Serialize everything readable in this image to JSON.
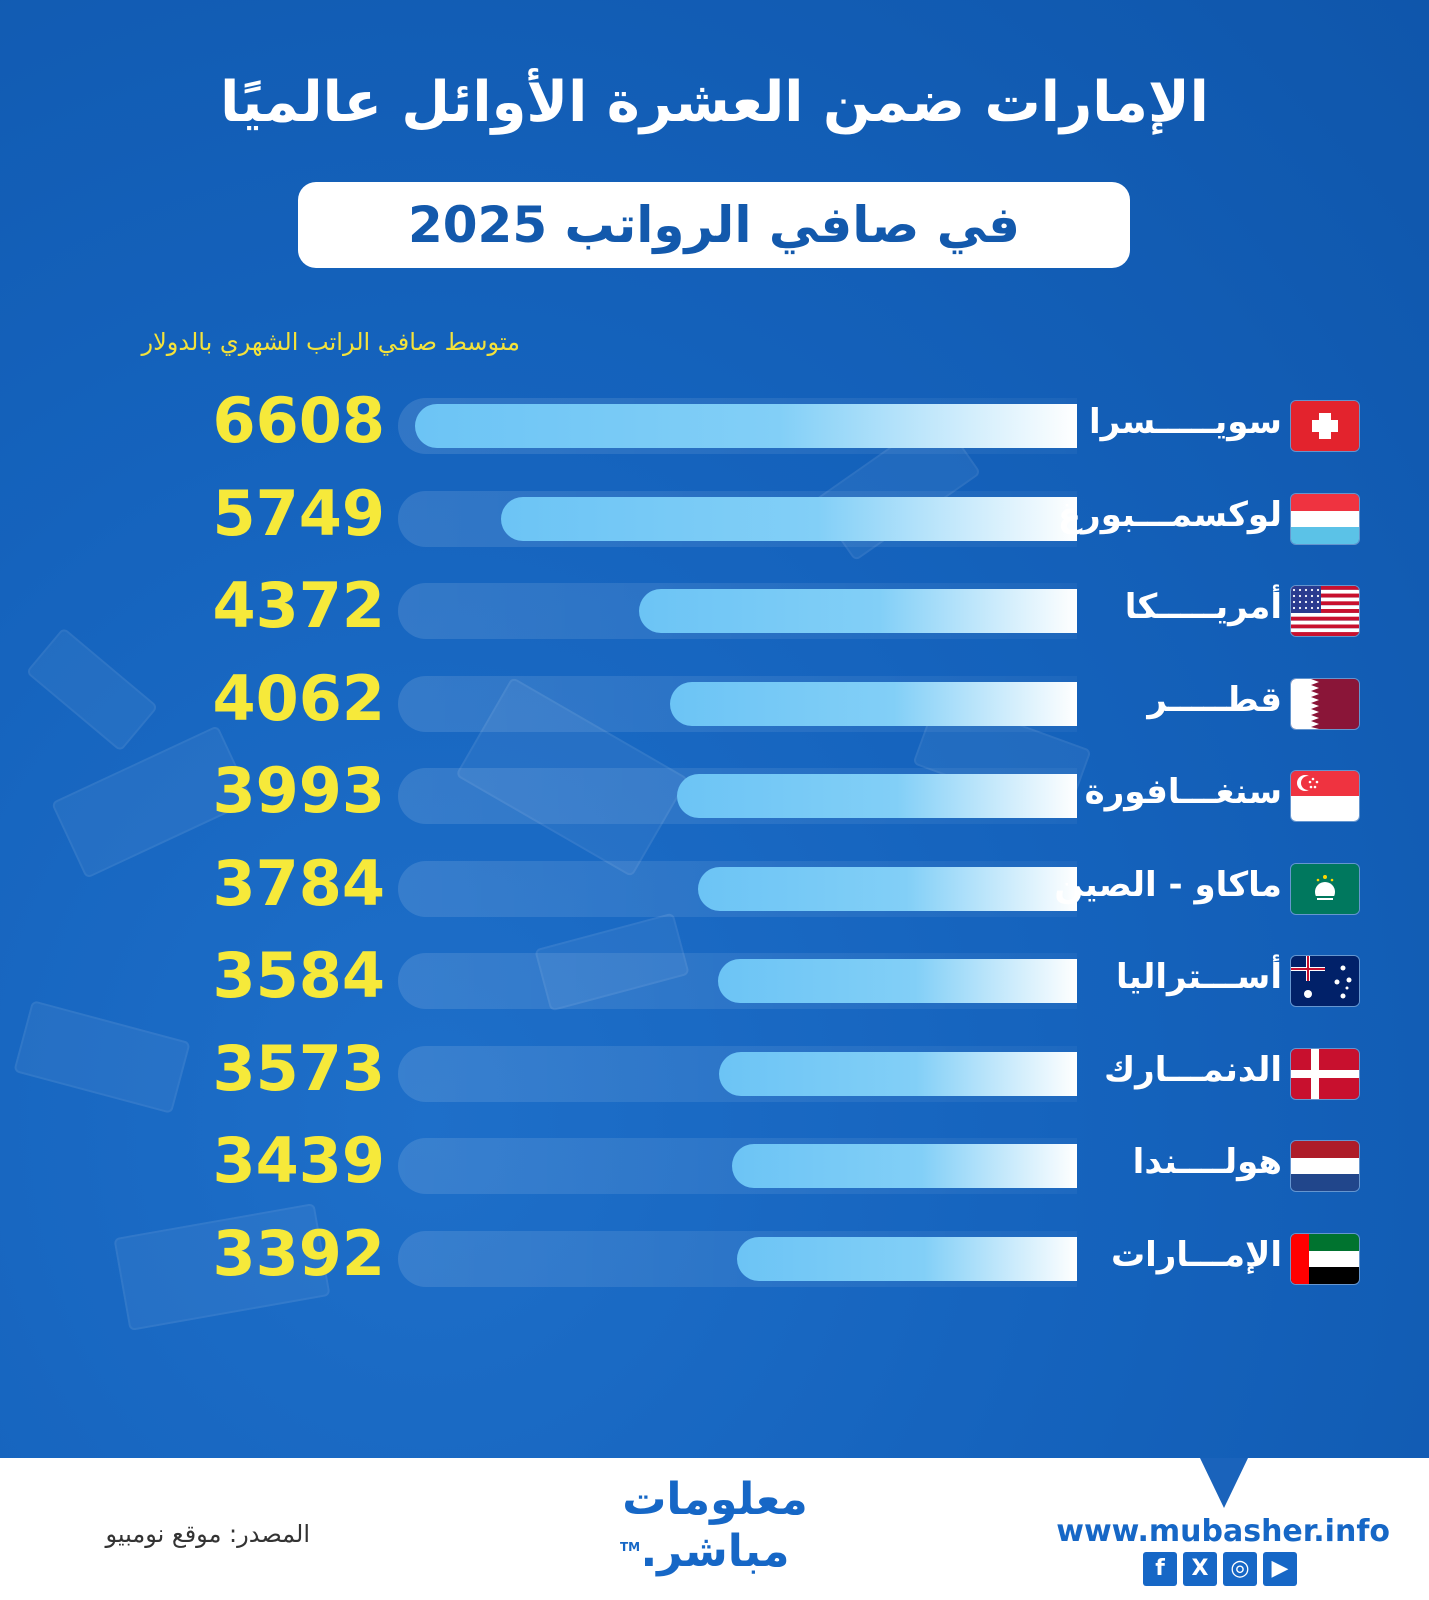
{
  "header": {
    "title": "الإمارات ضمن العشرة الأوائل عالميًا",
    "subtitle": "في صافي الرواتب 2025"
  },
  "chart_data": {
    "type": "bar",
    "orientation": "horizontal",
    "title": "الإمارات ضمن العشرة الأوائل عالميًا",
    "subtitle": "في صافي الرواتب 2025",
    "value_label": "متوسط صافي الراتب الشهري بالدولار",
    "categories": [
      "سويـــــسرا",
      "لوكسمـــبورغ",
      "أمريـــــكا",
      "قطـــــر",
      "سنغـــافورة",
      "ماكاو - الصين",
      "أســـتراليا",
      "الدنمـــارك",
      "هولــــندا",
      "الإمـــارات"
    ],
    "values": [
      6608,
      5749,
      4372,
      4062,
      3993,
      3784,
      3584,
      3573,
      3439,
      3392
    ],
    "flags": [
      "switzerland-flag",
      "luxembourg-flag",
      "usa-flag",
      "qatar-flag",
      "singapore-flag",
      "macau-flag",
      "australia-flag",
      "denmark-flag",
      "netherlands-flag",
      "uae-flag"
    ],
    "colors": {
      "bar_start": "#6cc4f5",
      "bar_end": "#ffffff",
      "value_text": "#f6e93a",
      "background": "#1563bd"
    }
  },
  "footer": {
    "source": "المصدر: موقع نومبيو",
    "logo_line1": "معلومات",
    "logo_line2": "مباشر.",
    "trademark": "TM",
    "website": "www.mubasher.info",
    "social": [
      "f",
      "X",
      "◎",
      "▶"
    ]
  }
}
